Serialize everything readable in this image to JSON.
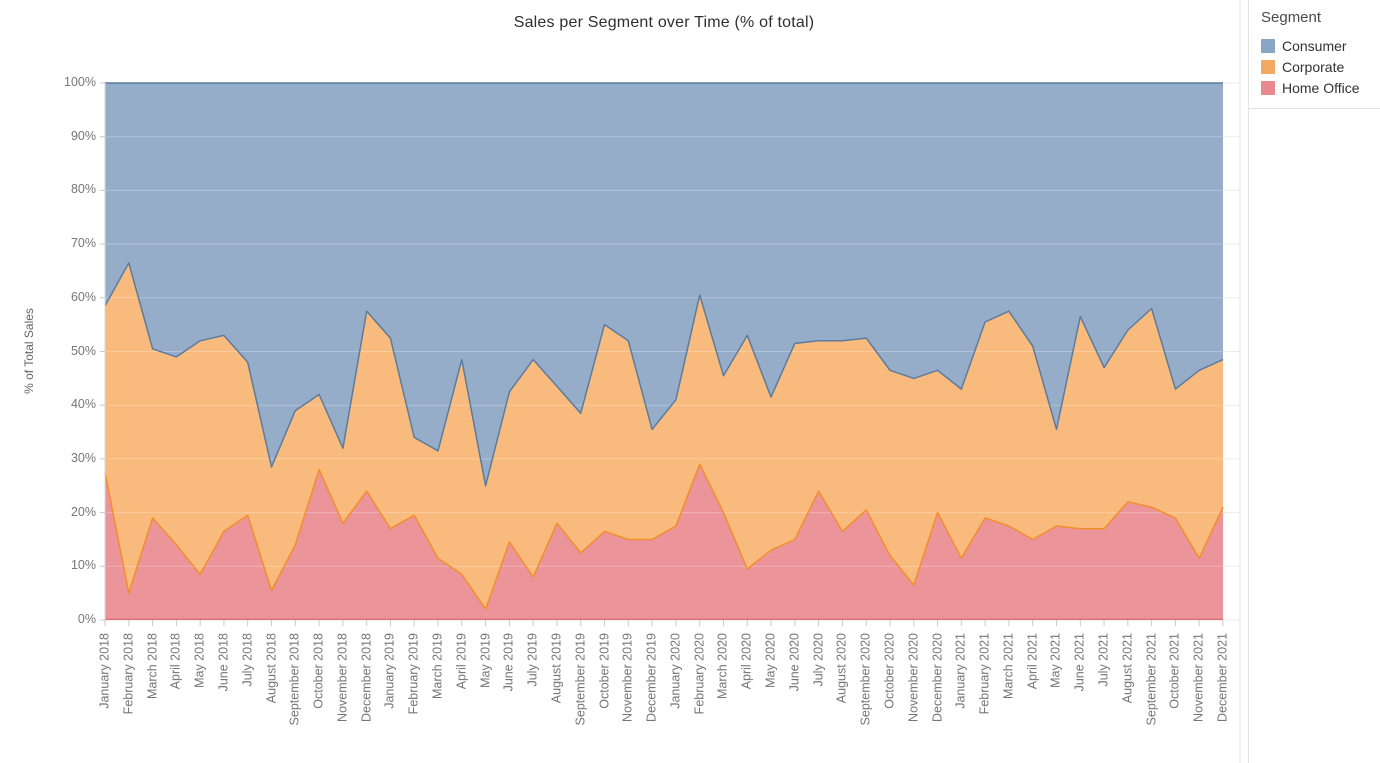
{
  "title": "Sales per Segment over Time (% of total)",
  "y_axis": {
    "title": "% of Total Sales",
    "ticks": [
      "0%",
      "10%",
      "20%",
      "30%",
      "40%",
      "50%",
      "60%",
      "70%",
      "80%",
      "90%",
      "100%"
    ]
  },
  "legend": {
    "title": "Segment",
    "items": [
      {
        "label": "Consumer",
        "color": "#8aa6c7"
      },
      {
        "label": "Corporate",
        "color": "#f3a963"
      },
      {
        "label": "Home Office",
        "color": "#e8898f"
      }
    ]
  },
  "chart_data": {
    "type": "area",
    "stacked": true,
    "percent_of_total": true,
    "title": "Sales per Segment over Time (% of total)",
    "xlabel": "",
    "ylabel": "% of Total Sales",
    "ylim": [
      0,
      100
    ],
    "grid": true,
    "legend_position": "top-right",
    "x": [
      "January 2018",
      "February 2018",
      "March 2018",
      "April 2018",
      "May 2018",
      "June 2018",
      "July 2018",
      "August 2018",
      "September 2018",
      "October 2018",
      "November 2018",
      "December 2018",
      "January 2019",
      "February 2019",
      "March 2019",
      "April 2019",
      "May 2019",
      "June 2019",
      "July 2019",
      "August 2019",
      "September 2019",
      "October 2019",
      "November 2019",
      "December 2019",
      "January 2020",
      "February 2020",
      "March 2020",
      "April 2020",
      "May 2020",
      "June 2020",
      "July 2020",
      "August 2020",
      "September 2020",
      "October 2020",
      "November 2020",
      "December 2020",
      "January 2021",
      "February 2021",
      "March 2021",
      "April 2021",
      "May 2021",
      "June 2021",
      "July 2021",
      "August 2021",
      "September 2021",
      "October 2021",
      "November 2021",
      "December 2021"
    ],
    "series": [
      {
        "name": "Consumer",
        "fill": "#95adc9",
        "stroke": "#5d7b9d",
        "values": [
          41.5,
          33.5,
          49.5,
          51,
          48,
          47,
          52,
          71.5,
          61,
          58,
          68,
          42.5,
          47.5,
          66,
          68.5,
          51.5,
          75,
          57.5,
          51.5,
          56.5,
          61.5,
          45,
          48,
          64.5,
          59,
          39.5,
          54.5,
          47,
          58.5,
          48.5,
          48,
          48,
          47.5,
          53.5,
          55,
          53.5,
          57,
          44.5,
          42.5,
          49,
          64.5,
          43.5,
          53,
          46,
          42,
          57,
          53.5,
          51.5
        ]
      },
      {
        "name": "Corporate",
        "fill": "#f8ba7d",
        "stroke": "#f28e2b",
        "values": [
          31,
          61.5,
          31.5,
          35,
          43.5,
          36.5,
          28.5,
          23,
          25,
          14,
          14,
          33.5,
          35.5,
          14.5,
          20,
          40,
          23,
          28,
          40.5,
          25.5,
          26,
          38.5,
          37,
          20.5,
          23.5,
          31.5,
          25.5,
          43.5,
          28.5,
          36.5,
          28,
          35.5,
          32,
          34.5,
          38.5,
          26.5,
          31.5,
          36.5,
          40,
          36,
          18,
          39.5,
          30,
          32,
          37,
          24,
          35,
          27.5
        ]
      },
      {
        "name": "Home Office",
        "fill": "#eb949a",
        "stroke": "#db6f72",
        "values": [
          27.5,
          5,
          19,
          14,
          8.5,
          16.5,
          19.5,
          5.5,
          14,
          28,
          18,
          24,
          17,
          19.5,
          11.5,
          8.5,
          2,
          14.5,
          8,
          18,
          12.5,
          16.5,
          15,
          15,
          17.5,
          29,
          20,
          9.5,
          13,
          15,
          24,
          16.5,
          20.5,
          12,
          6.5,
          20,
          11.5,
          19,
          17.5,
          15,
          17.5,
          17,
          17,
          22,
          21,
          19,
          11.5,
          21
        ]
      }
    ],
    "stack_order_bottom_to_top": [
      "Home Office",
      "Corporate",
      "Consumer"
    ]
  }
}
